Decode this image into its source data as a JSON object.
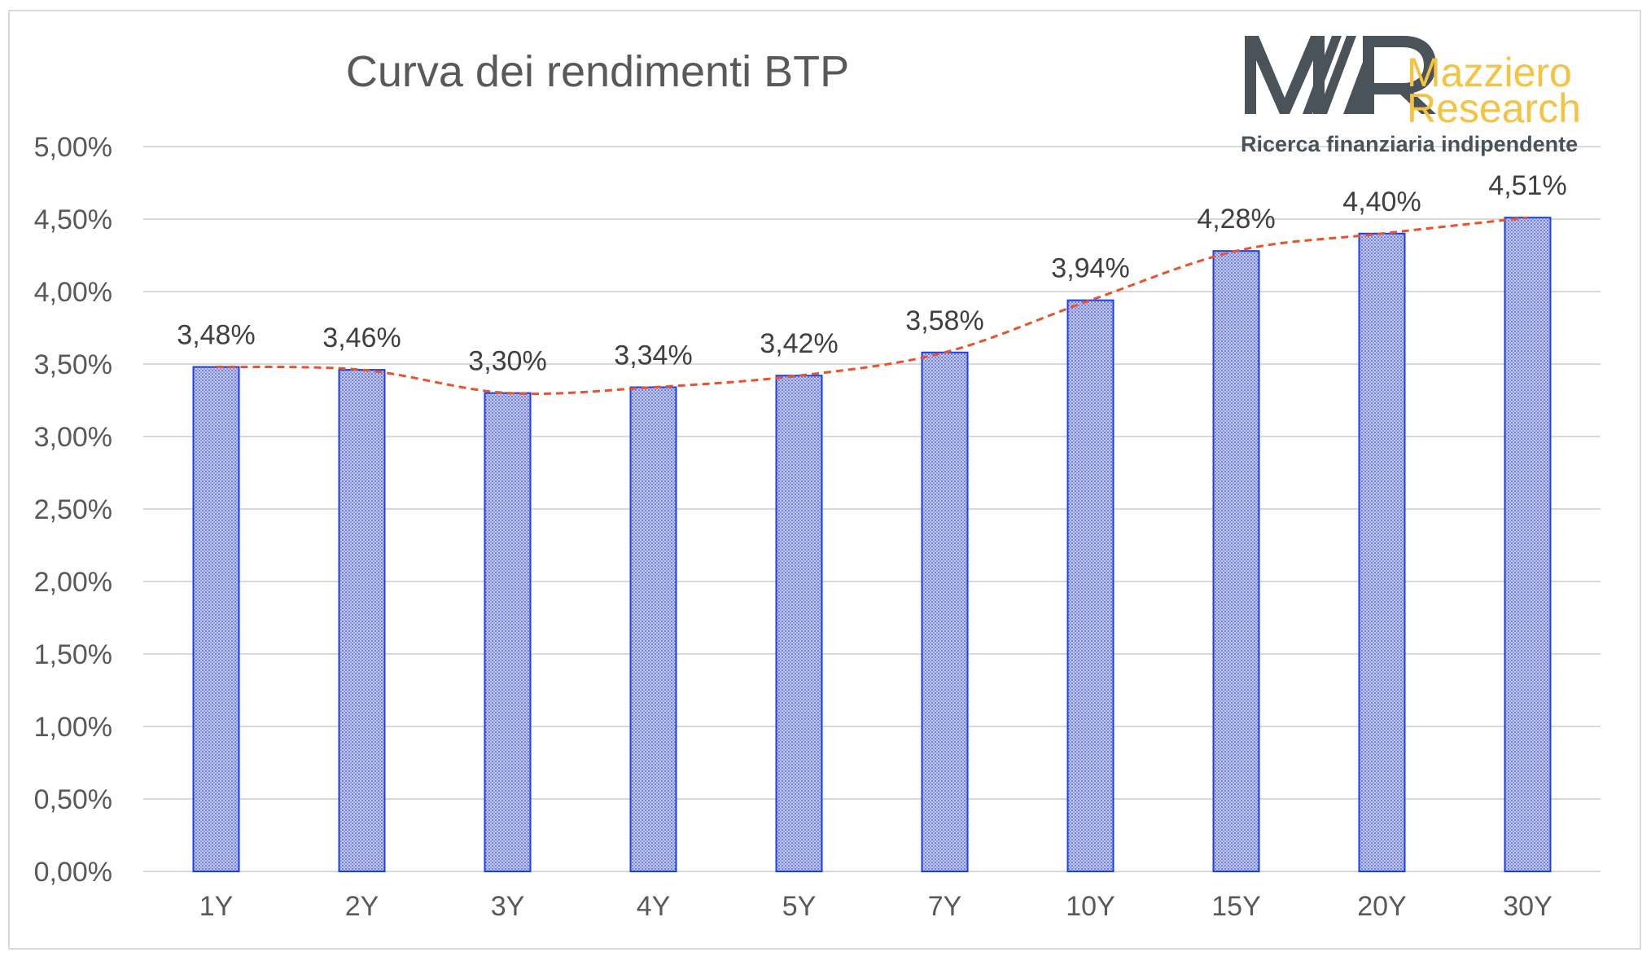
{
  "chart_data": {
    "type": "bar",
    "title": "Curva dei rendimenti BTP",
    "categories": [
      "1Y",
      "2Y",
      "3Y",
      "4Y",
      "5Y",
      "7Y",
      "10Y",
      "15Y",
      "20Y",
      "30Y"
    ],
    "values": [
      3.48,
      3.46,
      3.3,
      3.34,
      3.42,
      3.58,
      3.94,
      4.28,
      4.4,
      4.51
    ],
    "data_labels": [
      "3,48%",
      "3,46%",
      "3,30%",
      "3,34%",
      "3,42%",
      "3,58%",
      "3,94%",
      "4,28%",
      "4,40%",
      "4,51%"
    ],
    "ylim": [
      0,
      5
    ],
    "yticks": [
      0,
      0.5,
      1,
      1.5,
      2,
      2.5,
      3,
      3.5,
      4,
      4.5,
      5
    ],
    "ytick_labels": [
      "0,00%",
      "0,50%",
      "1,00%",
      "1,50%",
      "2,00%",
      "2,50%",
      "3,00%",
      "3,50%",
      "4,00%",
      "4,50%",
      "5,00%"
    ],
    "xlabel": "",
    "ylabel": "",
    "grid": true,
    "legend": "none",
    "trendline": "dashed",
    "colors": {
      "bar_fill": "#b7bfe9",
      "bar_pattern_dot": "#6f7fd8",
      "bar_border": "#1a3df0",
      "trendline": "#e8532a",
      "grid": "#d9d9d9",
      "text": "#595959"
    }
  },
  "logo": {
    "monogram": "MR",
    "line1": "Mazziero",
    "line2": "Research",
    "tagline": "Ricerca finanziaria indipendente",
    "colors": {
      "monogram": "#4a5359",
      "name": "#f5c342",
      "tagline": "#4a5359"
    }
  }
}
